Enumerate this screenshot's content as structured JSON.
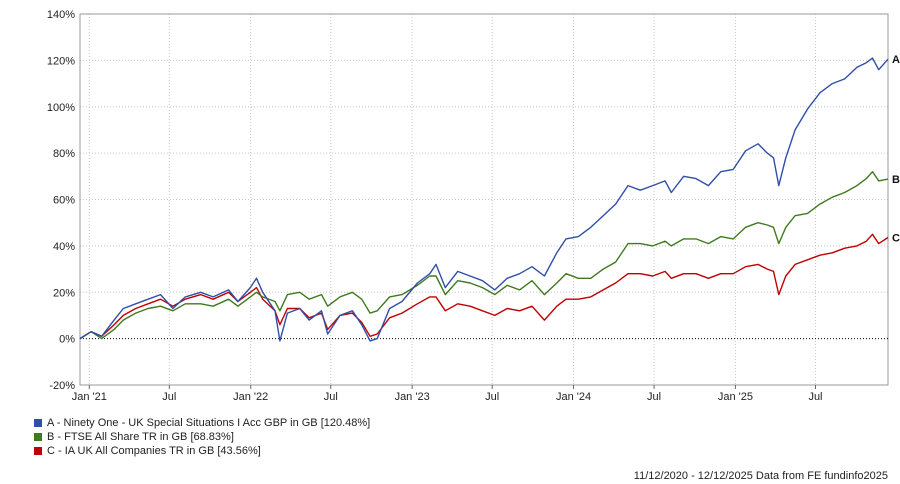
{
  "chart_data": {
    "type": "line",
    "title": "",
    "xlabel": "",
    "ylabel": "",
    "ylim": [
      -20,
      140
    ],
    "y_ticks": [
      -20,
      0,
      20,
      40,
      60,
      80,
      100,
      120,
      140
    ],
    "y_tick_labels": [
      "-20%",
      "0%",
      "20%",
      "40%",
      "60%",
      "80%",
      "100%",
      "120%",
      "140%"
    ],
    "x_range": [
      "2020-12-11",
      "2025-12-12"
    ],
    "x_ticks": [
      {
        "date": "2021-01-01",
        "label": "Jan '21"
      },
      {
        "date": "2021-07-01",
        "label": "Jul"
      },
      {
        "date": "2022-01-01",
        "label": "Jan '22"
      },
      {
        "date": "2022-07-01",
        "label": "Jul"
      },
      {
        "date": "2023-01-01",
        "label": "Jan '23"
      },
      {
        "date": "2023-07-01",
        "label": "Jul"
      },
      {
        "date": "2024-01-01",
        "label": "Jan '24"
      },
      {
        "date": "2024-07-01",
        "label": "Jul"
      },
      {
        "date": "2025-01-01",
        "label": "Jan '25"
      },
      {
        "date": "2025-07-01",
        "label": "Jul"
      }
    ],
    "grid": true,
    "zero_line": "dotted",
    "legend_position": "bottom-left",
    "series": [
      {
        "name": "A - Ninety One - UK Special Situations I Acc GBP in GB [120.48%]",
        "end_label": "A",
        "color": "#2f4fa8",
        "points": [
          [
            "2020-12-11",
            0
          ],
          [
            "2021-01-05",
            3
          ],
          [
            "2021-01-29",
            1
          ],
          [
            "2021-02-26",
            8
          ],
          [
            "2021-03-19",
            13
          ],
          [
            "2021-04-16",
            15
          ],
          [
            "2021-05-14",
            17
          ],
          [
            "2021-06-11",
            19
          ],
          [
            "2021-07-09",
            13
          ],
          [
            "2021-08-06",
            18
          ],
          [
            "2021-09-10",
            20
          ],
          [
            "2021-10-08",
            18
          ],
          [
            "2021-11-12",
            21
          ],
          [
            "2021-12-03",
            16
          ],
          [
            "2021-12-31",
            22
          ],
          [
            "2022-01-14",
            26
          ],
          [
            "2022-01-28",
            20
          ],
          [
            "2022-02-25",
            12
          ],
          [
            "2022-03-08",
            -1
          ],
          [
            "2022-03-25",
            11
          ],
          [
            "2022-04-22",
            13
          ],
          [
            "2022-05-13",
            8
          ],
          [
            "2022-06-10",
            12
          ],
          [
            "2022-06-24",
            2
          ],
          [
            "2022-07-22",
            10
          ],
          [
            "2022-08-19",
            12
          ],
          [
            "2022-09-09",
            6
          ],
          [
            "2022-09-28",
            -1
          ],
          [
            "2022-10-14",
            0
          ],
          [
            "2022-11-11",
            13
          ],
          [
            "2022-12-09",
            16
          ],
          [
            "2023-01-13",
            24
          ],
          [
            "2023-02-10",
            28
          ],
          [
            "2023-02-24",
            32
          ],
          [
            "2023-03-17",
            22
          ],
          [
            "2023-04-14",
            29
          ],
          [
            "2023-05-12",
            27
          ],
          [
            "2023-06-09",
            25
          ],
          [
            "2023-07-07",
            21
          ],
          [
            "2023-08-04",
            26
          ],
          [
            "2023-09-01",
            28
          ],
          [
            "2023-09-29",
            31
          ],
          [
            "2023-10-27",
            27
          ],
          [
            "2023-11-24",
            37
          ],
          [
            "2023-12-15",
            43
          ],
          [
            "2024-01-12",
            44
          ],
          [
            "2024-02-09",
            48
          ],
          [
            "2024-03-08",
            53
          ],
          [
            "2024-04-05",
            58
          ],
          [
            "2024-05-03",
            66
          ],
          [
            "2024-05-31",
            64
          ],
          [
            "2024-06-28",
            66
          ],
          [
            "2024-07-26",
            68
          ],
          [
            "2024-08-09",
            63
          ],
          [
            "2024-09-06",
            70
          ],
          [
            "2024-10-04",
            69
          ],
          [
            "2024-11-01",
            66
          ],
          [
            "2024-11-29",
            72
          ],
          [
            "2024-12-27",
            73
          ],
          [
            "2025-01-24",
            81
          ],
          [
            "2025-02-21",
            84
          ],
          [
            "2025-03-14",
            80
          ],
          [
            "2025-03-28",
            78
          ],
          [
            "2025-04-09",
            66
          ],
          [
            "2025-04-25",
            78
          ],
          [
            "2025-05-16",
            90
          ],
          [
            "2025-06-13",
            99
          ],
          [
            "2025-07-11",
            106
          ],
          [
            "2025-08-08",
            110
          ],
          [
            "2025-09-05",
            112
          ],
          [
            "2025-10-03",
            117
          ],
          [
            "2025-10-24",
            119
          ],
          [
            "2025-11-07",
            121
          ],
          [
            "2025-11-21",
            116
          ],
          [
            "2025-12-12",
            120.5
          ]
        ]
      },
      {
        "name": "B - FTSE All Share TR in GB [68.83%]",
        "end_label": "B",
        "color": "#3f7a1f",
        "points": [
          [
            "2020-12-11",
            0
          ],
          [
            "2021-01-05",
            3
          ],
          [
            "2021-01-29",
            0
          ],
          [
            "2021-02-26",
            4
          ],
          [
            "2021-03-19",
            8
          ],
          [
            "2021-04-16",
            11
          ],
          [
            "2021-05-14",
            13
          ],
          [
            "2021-06-11",
            14
          ],
          [
            "2021-07-09",
            12
          ],
          [
            "2021-08-06",
            15
          ],
          [
            "2021-09-10",
            15
          ],
          [
            "2021-10-08",
            14
          ],
          [
            "2021-11-12",
            17
          ],
          [
            "2021-12-03",
            14
          ],
          [
            "2021-12-31",
            18
          ],
          [
            "2022-01-14",
            20
          ],
          [
            "2022-01-28",
            18
          ],
          [
            "2022-02-25",
            16
          ],
          [
            "2022-03-08",
            12
          ],
          [
            "2022-03-25",
            19
          ],
          [
            "2022-04-22",
            20
          ],
          [
            "2022-05-13",
            17
          ],
          [
            "2022-06-10",
            19
          ],
          [
            "2022-06-24",
            14
          ],
          [
            "2022-07-22",
            18
          ],
          [
            "2022-08-19",
            20
          ],
          [
            "2022-09-09",
            17
          ],
          [
            "2022-09-28",
            11
          ],
          [
            "2022-10-14",
            12
          ],
          [
            "2022-11-11",
            18
          ],
          [
            "2022-12-09",
            19
          ],
          [
            "2023-01-13",
            23
          ],
          [
            "2023-02-10",
            27
          ],
          [
            "2023-02-24",
            27
          ],
          [
            "2023-03-17",
            19
          ],
          [
            "2023-04-14",
            25
          ],
          [
            "2023-05-12",
            24
          ],
          [
            "2023-06-09",
            22
          ],
          [
            "2023-07-07",
            19
          ],
          [
            "2023-08-04",
            23
          ],
          [
            "2023-09-01",
            21
          ],
          [
            "2023-09-29",
            25
          ],
          [
            "2023-10-27",
            19
          ],
          [
            "2023-11-24",
            24
          ],
          [
            "2023-12-15",
            28
          ],
          [
            "2024-01-12",
            26
          ],
          [
            "2024-02-09",
            26
          ],
          [
            "2024-03-08",
            30
          ],
          [
            "2024-04-05",
            33
          ],
          [
            "2024-05-03",
            41
          ],
          [
            "2024-05-31",
            41
          ],
          [
            "2024-06-28",
            40
          ],
          [
            "2024-07-26",
            42
          ],
          [
            "2024-08-09",
            40
          ],
          [
            "2024-09-06",
            43
          ],
          [
            "2024-10-04",
            43
          ],
          [
            "2024-11-01",
            41
          ],
          [
            "2024-11-29",
            44
          ],
          [
            "2024-12-27",
            43
          ],
          [
            "2025-01-24",
            48
          ],
          [
            "2025-02-21",
            50
          ],
          [
            "2025-03-14",
            49
          ],
          [
            "2025-03-28",
            48
          ],
          [
            "2025-04-09",
            41
          ],
          [
            "2025-04-25",
            48
          ],
          [
            "2025-05-16",
            53
          ],
          [
            "2025-06-13",
            54
          ],
          [
            "2025-07-11",
            58
          ],
          [
            "2025-08-08",
            61
          ],
          [
            "2025-09-05",
            63
          ],
          [
            "2025-10-03",
            66
          ],
          [
            "2025-10-24",
            69
          ],
          [
            "2025-11-07",
            72
          ],
          [
            "2025-11-21",
            68
          ],
          [
            "2025-12-12",
            68.8
          ]
        ]
      },
      {
        "name": "C - IA UK All Companies TR in GB [43.56%]",
        "end_label": "C",
        "color": "#c00000",
        "points": [
          [
            "2020-12-11",
            0
          ],
          [
            "2021-01-05",
            3
          ],
          [
            "2021-01-29",
            1
          ],
          [
            "2021-02-26",
            6
          ],
          [
            "2021-03-19",
            10
          ],
          [
            "2021-04-16",
            13
          ],
          [
            "2021-05-14",
            15
          ],
          [
            "2021-06-11",
            17
          ],
          [
            "2021-07-09",
            14
          ],
          [
            "2021-08-06",
            17
          ],
          [
            "2021-09-10",
            19
          ],
          [
            "2021-10-08",
            17
          ],
          [
            "2021-11-12",
            20
          ],
          [
            "2021-12-03",
            16
          ],
          [
            "2021-12-31",
            20
          ],
          [
            "2022-01-14",
            22
          ],
          [
            "2022-01-28",
            17
          ],
          [
            "2022-02-25",
            12
          ],
          [
            "2022-03-08",
            6
          ],
          [
            "2022-03-25",
            13
          ],
          [
            "2022-04-22",
            13
          ],
          [
            "2022-05-13",
            9
          ],
          [
            "2022-06-10",
            11
          ],
          [
            "2022-06-24",
            4
          ],
          [
            "2022-07-22",
            10
          ],
          [
            "2022-08-19",
            11
          ],
          [
            "2022-09-09",
            7
          ],
          [
            "2022-09-28",
            1
          ],
          [
            "2022-10-14",
            2
          ],
          [
            "2022-11-11",
            9
          ],
          [
            "2022-12-09",
            11
          ],
          [
            "2023-01-13",
            15
          ],
          [
            "2023-02-10",
            18
          ],
          [
            "2023-02-24",
            18
          ],
          [
            "2023-03-17",
            12
          ],
          [
            "2023-04-14",
            15
          ],
          [
            "2023-05-12",
            14
          ],
          [
            "2023-06-09",
            12
          ],
          [
            "2023-07-07",
            10
          ],
          [
            "2023-08-04",
            13
          ],
          [
            "2023-09-01",
            12
          ],
          [
            "2023-09-29",
            14
          ],
          [
            "2023-10-27",
            8
          ],
          [
            "2023-11-24",
            14
          ],
          [
            "2023-12-15",
            17
          ],
          [
            "2024-01-12",
            17
          ],
          [
            "2024-02-09",
            18
          ],
          [
            "2024-03-08",
            21
          ],
          [
            "2024-04-05",
            24
          ],
          [
            "2024-05-03",
            28
          ],
          [
            "2024-05-31",
            28
          ],
          [
            "2024-06-28",
            27
          ],
          [
            "2024-07-26",
            29
          ],
          [
            "2024-08-09",
            26
          ],
          [
            "2024-09-06",
            28
          ],
          [
            "2024-10-04",
            28
          ],
          [
            "2024-11-01",
            26
          ],
          [
            "2024-11-29",
            28
          ],
          [
            "2024-12-27",
            28
          ],
          [
            "2025-01-24",
            31
          ],
          [
            "2025-02-21",
            32
          ],
          [
            "2025-03-14",
            30
          ],
          [
            "2025-03-28",
            29
          ],
          [
            "2025-04-09",
            19
          ],
          [
            "2025-04-25",
            27
          ],
          [
            "2025-05-16",
            32
          ],
          [
            "2025-06-13",
            34
          ],
          [
            "2025-07-11",
            36
          ],
          [
            "2025-08-08",
            37
          ],
          [
            "2025-09-05",
            39
          ],
          [
            "2025-10-03",
            40
          ],
          [
            "2025-10-24",
            42
          ],
          [
            "2025-11-07",
            45
          ],
          [
            "2025-11-21",
            41
          ],
          [
            "2025-12-12",
            43.6
          ]
        ]
      }
    ]
  },
  "footer": {
    "text": "11/12/2020 - 12/12/2025 Data from FE fundinfo2025"
  }
}
